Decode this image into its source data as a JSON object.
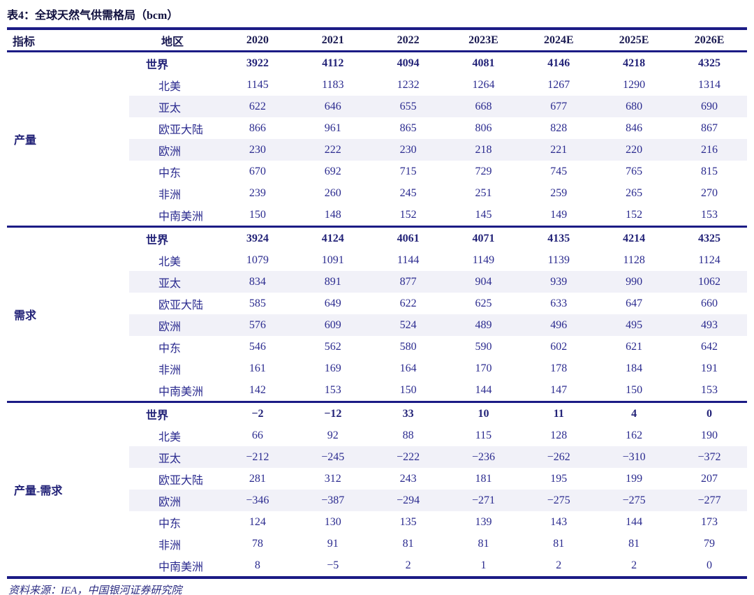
{
  "page": {
    "title": "表4：全球天然气供需格局（bcm）",
    "source_note": "资料来源：IEA，中国银河证券研究院"
  },
  "colors": {
    "rule_navy": "#1b1b85",
    "body_text_indigo": "#2b2b8f",
    "header_text_navy": "#1a1a52",
    "row_stripe": "#f1f1f8",
    "background": "#ffffff"
  },
  "table": {
    "indicator_header": "指标",
    "region_header": "地区",
    "year_headers": [
      "2020",
      "2021",
      "2022",
      "2023E",
      "2024E",
      "2025E",
      "2026E"
    ],
    "sections": [
      {
        "name": "产量",
        "rows": [
          {
            "region": "世界",
            "bold": true,
            "shaded": false,
            "values": [
              "3922",
              "4112",
              "4094",
              "4081",
              "4146",
              "4218",
              "4325"
            ]
          },
          {
            "region": "北美",
            "bold": false,
            "shaded": false,
            "values": [
              "1145",
              "1183",
              "1232",
              "1264",
              "1267",
              "1290",
              "1314"
            ]
          },
          {
            "region": "亚太",
            "bold": false,
            "shaded": true,
            "values": [
              "622",
              "646",
              "655",
              "668",
              "677",
              "680",
              "690"
            ]
          },
          {
            "region": "欧亚大陆",
            "bold": false,
            "shaded": false,
            "values": [
              "866",
              "961",
              "865",
              "806",
              "828",
              "846",
              "867"
            ]
          },
          {
            "region": "欧洲",
            "bold": false,
            "shaded": true,
            "values": [
              "230",
              "222",
              "230",
              "218",
              "221",
              "220",
              "216"
            ]
          },
          {
            "region": "中东",
            "bold": false,
            "shaded": false,
            "values": [
              "670",
              "692",
              "715",
              "729",
              "745",
              "765",
              "815"
            ]
          },
          {
            "region": "非洲",
            "bold": false,
            "shaded": false,
            "values": [
              "239",
              "260",
              "245",
              "251",
              "259",
              "265",
              "270"
            ]
          },
          {
            "region": "中南美洲",
            "bold": false,
            "shaded": false,
            "values": [
              "150",
              "148",
              "152",
              "145",
              "149",
              "152",
              "153"
            ]
          }
        ]
      },
      {
        "name": "需求",
        "rows": [
          {
            "region": "世界",
            "bold": true,
            "shaded": false,
            "values": [
              "3924",
              "4124",
              "4061",
              "4071",
              "4135",
              "4214",
              "4325"
            ]
          },
          {
            "region": "北美",
            "bold": false,
            "shaded": false,
            "values": [
              "1079",
              "1091",
              "1144",
              "1149",
              "1139",
              "1128",
              "1124"
            ]
          },
          {
            "region": "亚太",
            "bold": false,
            "shaded": true,
            "values": [
              "834",
              "891",
              "877",
              "904",
              "939",
              "990",
              "1062"
            ]
          },
          {
            "region": "欧亚大陆",
            "bold": false,
            "shaded": false,
            "values": [
              "585",
              "649",
              "622",
              "625",
              "633",
              "647",
              "660"
            ]
          },
          {
            "region": "欧洲",
            "bold": false,
            "shaded": true,
            "values": [
              "576",
              "609",
              "524",
              "489",
              "496",
              "495",
              "493"
            ]
          },
          {
            "region": "中东",
            "bold": false,
            "shaded": false,
            "values": [
              "546",
              "562",
              "580",
              "590",
              "602",
              "621",
              "642"
            ]
          },
          {
            "region": "非洲",
            "bold": false,
            "shaded": false,
            "values": [
              "161",
              "169",
              "164",
              "170",
              "178",
              "184",
              "191"
            ]
          },
          {
            "region": "中南美洲",
            "bold": false,
            "shaded": false,
            "values": [
              "142",
              "153",
              "150",
              "144",
              "147",
              "150",
              "153"
            ]
          }
        ]
      },
      {
        "name": "产量-需求",
        "rows": [
          {
            "region": "世界",
            "bold": true,
            "shaded": false,
            "values": [
              "−2",
              "−12",
              "33",
              "10",
              "11",
              "4",
              "0"
            ]
          },
          {
            "region": "北美",
            "bold": false,
            "shaded": false,
            "values": [
              "66",
              "92",
              "88",
              "115",
              "128",
              "162",
              "190"
            ]
          },
          {
            "region": "亚太",
            "bold": false,
            "shaded": true,
            "values": [
              "−212",
              "−245",
              "−222",
              "−236",
              "−262",
              "−310",
              "−372"
            ]
          },
          {
            "region": "欧亚大陆",
            "bold": false,
            "shaded": false,
            "values": [
              "281",
              "312",
              "243",
              "181",
              "195",
              "199",
              "207"
            ]
          },
          {
            "region": "欧洲",
            "bold": false,
            "shaded": true,
            "values": [
              "−346",
              "−387",
              "−294",
              "−271",
              "−275",
              "−275",
              "−277"
            ]
          },
          {
            "region": "中东",
            "bold": false,
            "shaded": false,
            "values": [
              "124",
              "130",
              "135",
              "139",
              "143",
              "144",
              "173"
            ]
          },
          {
            "region": "非洲",
            "bold": false,
            "shaded": false,
            "values": [
              "78",
              "91",
              "81",
              "81",
              "81",
              "81",
              "79"
            ]
          },
          {
            "region": "中南美洲",
            "bold": false,
            "shaded": false,
            "values": [
              "8",
              "−5",
              "2",
              "1",
              "2",
              "2",
              "0"
            ]
          }
        ]
      }
    ]
  }
}
